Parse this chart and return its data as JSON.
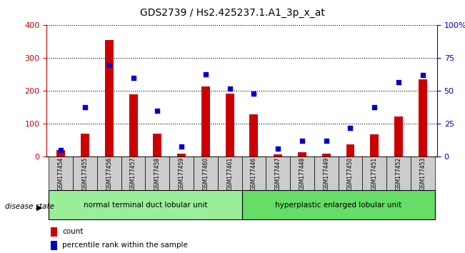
{
  "title": "GDS2739 / Hs2.425237.1.A1_3p_x_at",
  "samples": [
    "GSM177454",
    "GSM177455",
    "GSM177456",
    "GSM177457",
    "GSM177458",
    "GSM177459",
    "GSM177460",
    "GSM177461",
    "GSM177446",
    "GSM177447",
    "GSM177448",
    "GSM177449",
    "GSM177450",
    "GSM177451",
    "GSM177452",
    "GSM177453"
  ],
  "counts": [
    20,
    70,
    355,
    190,
    70,
    10,
    215,
    193,
    130,
    8,
    15,
    10,
    37,
    68,
    122,
    235
  ],
  "percentiles": [
    5,
    38,
    70,
    60,
    35,
    8,
    63,
    52,
    48,
    6,
    12,
    12,
    22,
    38,
    57,
    62
  ],
  "group1_label": "normal terminal duct lobular unit",
  "group2_label": "hyperplastic enlarged lobular unit",
  "group1_count": 8,
  "group2_count": 8,
  "disease_state_label": "disease state",
  "left_ylabel": "",
  "right_ylabel": "",
  "ylim_left": [
    0,
    400
  ],
  "ylim_right": [
    0,
    100
  ],
  "yticks_left": [
    0,
    100,
    200,
    300,
    400
  ],
  "yticks_right": [
    0,
    25,
    50,
    75,
    100
  ],
  "yticklabels_right": [
    "0",
    "25",
    "50",
    "75",
    "100%"
  ],
  "bar_color": "#cc0000",
  "dot_color": "#0000cc",
  "grid_color": "#000000",
  "bg_color": "#ffffff",
  "tick_area_color": "#cccccc",
  "group1_color": "#99ee99",
  "group2_color": "#66dd66",
  "legend_count_label": "count",
  "legend_pct_label": "percentile rank within the sample"
}
